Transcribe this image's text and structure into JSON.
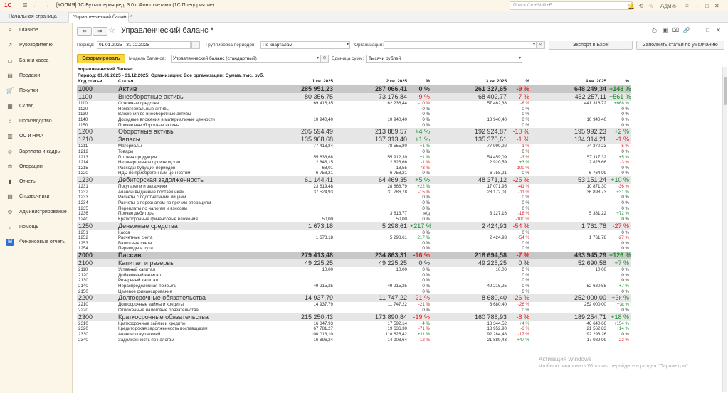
{
  "app": {
    "logo": "1С",
    "title": "[КОПИЯ] 1С:Бухгалтерия ред. 3.0 с Фин отчетами  (1С:Предприятие)",
    "search_placeholder": "Поиск Ctrl+Shift+F",
    "user": "Админ"
  },
  "tabs": {
    "home": "Начальная страница",
    "active": "Управленческий баланс *"
  },
  "sidebar": {
    "items": [
      {
        "label": "Главное",
        "icon": "menu-icon"
      },
      {
        "label": "Руководителю",
        "icon": "chart-icon"
      },
      {
        "label": "Банк и касса",
        "icon": "bank-icon"
      },
      {
        "label": "Продажи",
        "icon": "sales-icon"
      },
      {
        "label": "Покупки",
        "icon": "cart-icon"
      },
      {
        "label": "Склад",
        "icon": "warehouse-icon"
      },
      {
        "label": "Производство",
        "icon": "factory-icon"
      },
      {
        "label": "ОС и НМА",
        "icon": "assets-icon"
      },
      {
        "label": "Зарплата и кадры",
        "icon": "people-icon"
      },
      {
        "label": "Операции",
        "icon": "operations-icon"
      },
      {
        "label": "Отчеты",
        "icon": "reports-icon"
      },
      {
        "label": "Справочники",
        "icon": "catalog-icon"
      },
      {
        "label": "Администрирование",
        "icon": "gear-icon"
      },
      {
        "label": "Помощь",
        "icon": "help-icon"
      },
      {
        "label": "Финансовые отчеты",
        "icon": "m-icon"
      }
    ]
  },
  "doc": {
    "title": "Управленческий баланс *"
  },
  "params": {
    "period_label": "Период:",
    "period_value": "01.01.2025 - 31.12.2025",
    "grouping_label": "Группировка периодов:",
    "grouping_value": "По кварталам",
    "org_label": "Организация:",
    "org_value": "",
    "export_label": "Экспорт в Excel",
    "fill_label": "Заполнить статьи по умолчанию",
    "form_label": "Сформировать",
    "model_label": "Модель баланса:",
    "model_value": "Управленческий баланс (стандартный)",
    "unit_label": "Единица сумм:",
    "unit_value": "Тысячи рублей"
  },
  "report": {
    "title": "Управленческий баланс",
    "subtitle": "Период: 01.01.2025 - 31.12.2025; Организации: Все организации; Сумма, тыс. руб.",
    "headers": [
      "Код статьи",
      "Статья",
      "1 кв. 2025",
      "2 кв. 2025",
      "%",
      "3 кв. 2025",
      "%",
      "4 кв. 2025",
      "%"
    ],
    "rows": [
      {
        "lvl": "g0",
        "code": "1000",
        "name": "Актив",
        "q1": "285 951,23",
        "q2": "287 066,41",
        "p2": "0 %",
        "q3": "261 327,65",
        "p3": "-9 %",
        "q4": "648 249,34",
        "p4": "+148 %"
      },
      {
        "lvl": "g1",
        "code": "1100",
        "name": "Внеоборотные активы",
        "q1": "80 356,75",
        "q2": "73 176,84",
        "p2": "-9 %",
        "q3": "68 402,77",
        "p3": "-7 %",
        "q4": "452 257,11",
        "p4": "+561 %"
      },
      {
        "lvl": "d",
        "code": "1110",
        "name": "Основные средства",
        "q1": "69 416,35",
        "q2": "62 236,44",
        "p2": "-10 %",
        "q3": "57 462,38",
        "p3": "-8 %",
        "q4": "441 316,72",
        "p4": "+668 %"
      },
      {
        "lvl": "d",
        "code": "1120",
        "name": "Нематериальные активы",
        "q1": "",
        "q2": "",
        "p2": "0 %",
        "q3": "",
        "p3": "0 %",
        "q4": "",
        "p4": "0 %"
      },
      {
        "lvl": "d",
        "code": "1130",
        "name": "Вложения во внеоборотные активы",
        "q1": "",
        "q2": "",
        "p2": "0 %",
        "q3": "",
        "p3": "0 %",
        "q4": "",
        "p4": "0 %"
      },
      {
        "lvl": "d",
        "code": "1140",
        "name": "Доходные вложения в материальные ценности",
        "q1": "10 940,40",
        "q2": "10 940,40",
        "p2": "0 %",
        "q3": "10 940,40",
        "p3": "0 %",
        "q4": "10 940,40",
        "p4": "0 %"
      },
      {
        "lvl": "d",
        "code": "1150",
        "name": "Прочие внеоборотные активы",
        "q1": "",
        "q2": "",
        "p2": "0 %",
        "q3": "",
        "p3": "0 %",
        "q4": "",
        "p4": "0 %"
      },
      {
        "lvl": "g1",
        "code": "1200",
        "name": "Оборотные активы",
        "q1": "205 594,49",
        "q2": "213 889,57",
        "p2": "+4 %",
        "q3": "192 924,87",
        "p3": "-10 %",
        "q4": "195 992,23",
        "p4": "+2 %"
      },
      {
        "lvl": "g1",
        "code": "1210",
        "name": "Запасы",
        "q1": "135 968,68",
        "q2": "137 313,40",
        "p2": "+1 %",
        "q3": "135 370,61",
        "p3": "-1 %",
        "q4": "134 314,21",
        "p4": "-1 %"
      },
      {
        "lvl": "d",
        "code": "1211",
        "name": "Материалы",
        "q1": "77 418,84",
        "q2": "78 555,80",
        "p2": "+1 %",
        "q3": "77 990,92",
        "p3": "-1 %",
        "q4": "74 370,23",
        "p4": "-5 %"
      },
      {
        "lvl": "d",
        "code": "1212",
        "name": "Товары",
        "q1": "",
        "q2": "",
        "p2": "0 %",
        "q3": "",
        "p3": "0 %",
        "q4": "",
        "p4": "0 %"
      },
      {
        "lvl": "d",
        "code": "1213",
        "name": "Готовая продукция",
        "q1": "55 633,68",
        "q2": "55 912,39",
        "p2": "+1 %",
        "q3": "54 459,09",
        "p3": "-3 %",
        "q4": "57 117,32",
        "p4": "+5 %"
      },
      {
        "lvl": "d",
        "code": "1214",
        "name": "Незавершенное производство",
        "q1": "2 848,15",
        "q2": "2 826,66",
        "p2": "-1 %",
        "q3": "2 920,59",
        "p3": "+3 %",
        "q4": "2 826,66",
        "p4": "-3 %"
      },
      {
        "lvl": "d",
        "code": "1215",
        "name": "Расходы будущих периодов",
        "q1": "68,01",
        "q2": "18,55",
        "p2": "-73 %",
        "q3": "",
        "p3": "-100 %",
        "q4": "",
        "p4": "0 %"
      },
      {
        "lvl": "d",
        "code": "1220",
        "name": "НДС по приобретенным ценностям",
        "q1": "6 758,21",
        "q2": "6 758,21",
        "p2": "0 %",
        "q3": "6 758,21",
        "p3": "0 %",
        "q4": "6 764,99",
        "p4": "0 %"
      },
      {
        "lvl": "g1",
        "code": "1230",
        "name": "Дебиторская задолженность",
        "q1": "61 144,41",
        "q2": "64 469,35",
        "p2": "+5 %",
        "q3": "48 371,12",
        "p3": "-25 %",
        "q4": "53 151,24",
        "p4": "+10 %"
      },
      {
        "lvl": "d",
        "code": "1231",
        "name": "Покупатели и заказчики",
        "q1": "23 619,48",
        "q2": "28 868,79",
        "p2": "+22 %",
        "q3": "17 071,95",
        "p3": "-41 %",
        "q4": "10 871,30",
        "p4": "-36 %"
      },
      {
        "lvl": "d",
        "code": "1232",
        "name": "Авансы выданные поставщикам",
        "q1": "37 524,93",
        "q2": "31 786,78",
        "p2": "-15 %",
        "q3": "28 172,01",
        "p3": "-11 %",
        "q4": "36 898,73",
        "p4": "+31 %"
      },
      {
        "lvl": "d",
        "code": "1233",
        "name": "Расчеты с подотчетными лицами",
        "q1": "",
        "q2": "",
        "p2": "0 %",
        "q3": "",
        "p3": "0 %",
        "q4": "",
        "p4": "0 %"
      },
      {
        "lvl": "d",
        "code": "1234",
        "name": "Расчеты с персоналом по прочим операциям",
        "q1": "",
        "q2": "",
        "p2": "0 %",
        "q3": "",
        "p3": "0 %",
        "q4": "",
        "p4": "0 %"
      },
      {
        "lvl": "d",
        "code": "1235",
        "name": "Переплаты по налогам и взносам",
        "q1": "",
        "q2": "",
        "p2": "0 %",
        "q3": "",
        "p3": "0 %",
        "q4": "",
        "p4": "0 %"
      },
      {
        "lvl": "d",
        "code": "1236",
        "name": "Прочие дебиторы",
        "q1": "",
        "q2": "3 813,77",
        "p2": "н/д",
        "q3": "3 127,16",
        "p3": "-18 %",
        "q4": "5 381,22",
        "p4": "+72 %"
      },
      {
        "lvl": "d",
        "code": "1240",
        "name": "Краткосрочные финансовые вложения",
        "q1": "50,00",
        "q2": "50,00",
        "p2": "0 %",
        "q3": "",
        "p3": "-100 %",
        "q4": "",
        "p4": "0 %"
      },
      {
        "lvl": "g1",
        "code": "1250",
        "name": "Денежные средства",
        "q1": "1 673,18",
        "q2": "5 298,61",
        "p2": "+217 %",
        "q3": "2 424,93",
        "p3": "-54 %",
        "q4": "1 761,78",
        "p4": "-27 %"
      },
      {
        "lvl": "d",
        "code": "1251",
        "name": "Касса",
        "q1": "",
        "q2": "",
        "p2": "0 %",
        "q3": "",
        "p3": "0 %",
        "q4": "",
        "p4": "0 %"
      },
      {
        "lvl": "d",
        "code": "1252",
        "name": "Расчетные счета",
        "q1": "1 673,18",
        "q2": "5 298,61",
        "p2": "+217 %",
        "q3": "2 424,93",
        "p3": "-54 %",
        "q4": "1 761,78",
        "p4": "-27 %"
      },
      {
        "lvl": "d",
        "code": "1253",
        "name": "Валютные счета",
        "q1": "",
        "q2": "",
        "p2": "0 %",
        "q3": "",
        "p3": "0 %",
        "q4": "",
        "p4": "0 %"
      },
      {
        "lvl": "d",
        "code": "1254",
        "name": "Переводы в пути",
        "q1": "",
        "q2": "",
        "p2": "0 %",
        "q3": "",
        "p3": "0 %",
        "q4": "",
        "p4": "0 %"
      },
      {
        "lvl": "g0",
        "code": "2000",
        "name": "Пассив",
        "q1": "279 413,48",
        "q2": "234 863,31",
        "p2": "-16 %",
        "q3": "218 694,58",
        "p3": "-7 %",
        "q4": "493 945,29",
        "p4": "+126 %"
      },
      {
        "lvl": "g1",
        "code": "2100",
        "name": "Капитал и резервы",
        "q1": "49 225,25",
        "q2": "49 225,25",
        "p2": "0 %",
        "q3": "49 225,25",
        "p3": "0 %",
        "q4": "52 690,58",
        "p4": "+7 %"
      },
      {
        "lvl": "d",
        "code": "2110",
        "name": "Уставный капитал",
        "q1": "10,00",
        "q2": "10,00",
        "p2": "0 %",
        "q3": "10,00",
        "p3": "0 %",
        "q4": "10,00",
        "p4": "0 %"
      },
      {
        "lvl": "d",
        "code": "2120",
        "name": "Добавочный капитал",
        "q1": "",
        "q2": "",
        "p2": "0 %",
        "q3": "",
        "p3": "0 %",
        "q4": "",
        "p4": "0 %"
      },
      {
        "lvl": "d",
        "code": "2130",
        "name": "Резервный капитал",
        "q1": "",
        "q2": "",
        "p2": "0 %",
        "q3": "",
        "p3": "0 %",
        "q4": "",
        "p4": "0 %"
      },
      {
        "lvl": "d",
        "code": "2140",
        "name": "Нераспределенная прибыль",
        "q1": "49 215,25",
        "q2": "49 215,25",
        "p2": "0 %",
        "q3": "49 215,25",
        "p3": "0 %",
        "q4": "52 680,58",
        "p4": "+7 %"
      },
      {
        "lvl": "d",
        "code": "2150",
        "name": "Целевое финансирование",
        "q1": "",
        "q2": "",
        "p2": "0 %",
        "q3": "",
        "p3": "0 %",
        "q4": "",
        "p4": "0 %"
      },
      {
        "lvl": "g1",
        "code": "2200",
        "name": "Долгосрочные обязательства",
        "q1": "14 937,79",
        "q2": "11 747,22",
        "p2": "-21 %",
        "q3": "8 680,40",
        "p3": "-26 %",
        "q4": "252 000,00",
        "p4": "+3к %"
      },
      {
        "lvl": "d",
        "code": "2210",
        "name": "Долгосрочные займы и кредиты",
        "q1": "14 937,79",
        "q2": "11 747,22",
        "p2": "-21 %",
        "q3": "8 680,40",
        "p3": "-26 %",
        "q4": "252 000,00",
        "p4": "+3к %"
      },
      {
        "lvl": "d",
        "code": "2220",
        "name": "Отложенные налоговые обязательства",
        "q1": "",
        "q2": "",
        "p2": "0 %",
        "q3": "",
        "p3": "0 %",
        "q4": "",
        "p4": "0 %"
      },
      {
        "lvl": "g1",
        "code": "2300",
        "name": "Краткосрочные обязательства",
        "q1": "215 250,43",
        "q2": "173 890,84",
        "p2": "-19 %",
        "q3": "160 788,93",
        "p3": "-8 %",
        "q4": "189 254,71",
        "p4": "+18 %"
      },
      {
        "lvl": "d",
        "code": "2310",
        "name": "Краткосрочные займы и кредиты",
        "q1": "16 847,93",
        "q2": "17 592,14",
        "p2": "+4 %",
        "q3": "18 344,52",
        "p3": "+4 %",
        "q4": "46 640,66",
        "p4": "+154 %"
      },
      {
        "lvl": "d",
        "code": "2320",
        "name": "Кредиторская задолженность поставщикам",
        "q1": "67 781,27",
        "q2": "19 636,30",
        "p2": "-71 %",
        "q3": "18 952,90",
        "p3": "-3 %",
        "q4": "21 562,83",
        "p4": "+14 %"
      },
      {
        "lvl": "d",
        "code": "2330",
        "name": "Авансы покупателей",
        "q1": "100 013,10",
        "q2": "110 626,42",
        "p2": "+11 %",
        "q3": "92 284,48",
        "p3": "-17 %",
        "q4": "92 293,26",
        "p4": "0 %"
      },
      {
        "lvl": "d",
        "code": "2340",
        "name": "Задолженность по налогам",
        "q1": "16 896,24",
        "q2": "14 908,64",
        "p2": "-12 %",
        "q3": "21 889,43",
        "p3": "+47 %",
        "q4": "17 082,99",
        "p4": "-22 %"
      }
    ]
  },
  "watermark": {
    "line1": "Активация Windows",
    "line2": "Чтобы активировать Windows, перейдите в раздел \"Параметры\"."
  }
}
